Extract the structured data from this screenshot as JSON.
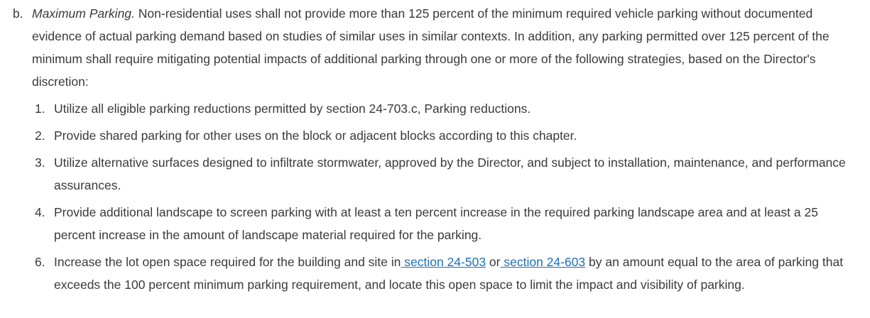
{
  "section": {
    "marker": "b.",
    "term": "Maximum Parking.",
    "text": " Non-residential uses shall not provide more than 125 percent of the minimum required vehicle parking without documented evidence of actual parking demand based on studies of similar uses in similar contexts. In addition, any parking permitted over 125 percent of the minimum shall require mitigating potential impacts of additional parking through one or more of the following strategies, based on the Director's discretion:"
  },
  "items": [
    {
      "num": "1.",
      "text": "Utilize all eligible parking reductions permitted by section 24-703.c, Parking reductions."
    },
    {
      "num": "2.",
      "text": "Provide shared parking for other uses on the block or adjacent blocks according to this chapter."
    },
    {
      "num": "3.",
      "text": "Utilize alternative surfaces designed to infiltrate stormwater, approved by the Director, and subject to installation, maintenance, and performance assurances."
    },
    {
      "num": "4.",
      "text": "Provide additional landscape to screen parking with at least a ten percent increase in the required parking landscape area and at least a 25 percent increase in the amount of landscape material required for the parking."
    },
    {
      "num": "6.",
      "text_before": "Increase the lot open space required for the building and site in",
      "link1": " section 24-503",
      "text_mid": " or",
      "link2": " section 24-603",
      "text_after": " by an amount equal to the area of parking that exceeds the 100 percent minimum parking requirement, and locate this open space to limit the impact and visibility of parking."
    }
  ],
  "colors": {
    "text": "#3a3a3a",
    "link": "#1f6fb4",
    "background": "#ffffff"
  }
}
